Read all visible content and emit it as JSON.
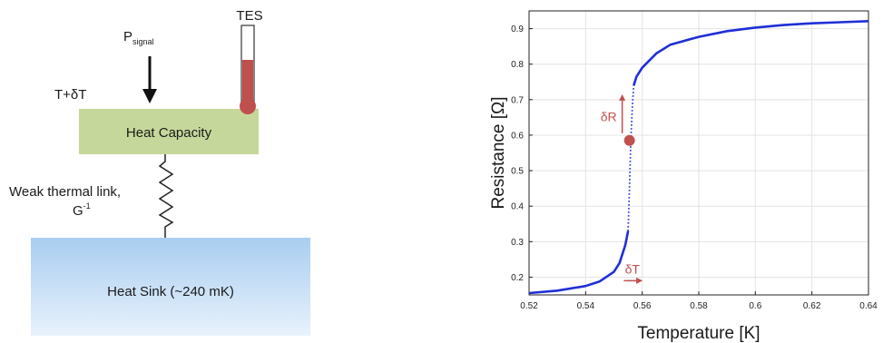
{
  "diagram": {
    "tes_label": "TES",
    "p_signal": "P",
    "p_signal_sub": "signal",
    "temp_label": "T+δT",
    "heat_capacity": "Heat Capacity",
    "link_label_line1": "Weak thermal link,",
    "link_label_line2": "G",
    "link_label_sup": "-1",
    "heat_sink": "Heat Sink (~240 mK)",
    "colors": {
      "heat_capacity_fill": "#c5d79a",
      "heat_sink_top": "#a9cdf0",
      "heat_sink_bottom": "#e8f2fc",
      "thermometer": "#c0504d"
    }
  },
  "chart_data": {
    "type": "line",
    "xlabel": "Temperature [K]",
    "ylabel": "Resistance [Ω]",
    "xlim": [
      0.52,
      0.64
    ],
    "ylim": [
      0.15,
      0.95
    ],
    "xticks": [
      "0.52",
      "0.54",
      "0.56",
      "0.58",
      "0.6",
      "0.62",
      "0.64"
    ],
    "yticks": [
      "0.2",
      "0.3",
      "0.4",
      "0.5",
      "0.6",
      "0.7",
      "0.8",
      "0.9"
    ],
    "grid": true,
    "series": [
      {
        "color": "#1f2fd6",
        "x": [
          0.52,
          0.53,
          0.54,
          0.545,
          0.55,
          0.552,
          0.554,
          0.555,
          0.5555,
          0.556,
          0.5565,
          0.557,
          0.558,
          0.56,
          0.565,
          0.57,
          0.58,
          0.59,
          0.6,
          0.61,
          0.62,
          0.63,
          0.64
        ],
        "y": [
          0.155,
          0.162,
          0.175,
          0.188,
          0.215,
          0.24,
          0.29,
          0.33,
          0.45,
          0.59,
          0.68,
          0.74,
          0.765,
          0.79,
          0.83,
          0.855,
          0.877,
          0.893,
          0.903,
          0.91,
          0.915,
          0.918,
          0.921
        ]
      }
    ],
    "transition_segment": {
      "x_start": 0.555,
      "x_end": 0.557
    },
    "marker": {
      "x": 0.5555,
      "y": 0.585,
      "color": "#c0504d"
    },
    "annotations": [
      {
        "text": "δR",
        "color": "#c0504d"
      },
      {
        "text": "δT",
        "color": "#c0504d"
      }
    ]
  }
}
